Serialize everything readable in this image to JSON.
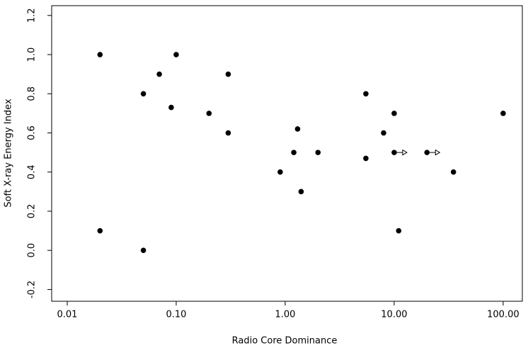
{
  "chart_data": {
    "type": "scatter",
    "x_label": "Radio Core Dominance",
    "y_label": "Soft X-ray Energy Index",
    "x_scale": "log",
    "color": "#000000",
    "x": [
      0.02,
      0.02,
      0.05,
      0.05,
      0.07,
      0.09,
      0.1,
      0.2,
      0.3,
      0.3,
      0.9,
      1.2,
      1.3,
      1.4,
      2.0,
      5.5,
      5.5,
      8,
      10,
      10,
      11,
      20,
      35,
      100
    ],
    "y": [
      1.0,
      0.1,
      0.8,
      0.0,
      0.9,
      0.73,
      1.0,
      0.7,
      0.9,
      0.6,
      0.4,
      0.5,
      0.62,
      0.3,
      0.5,
      0.8,
      0.47,
      0.6,
      0.7,
      0.5,
      0.1,
      0.5,
      0.4,
      0.7
    ],
    "x_lower_limit": [
      false,
      false,
      false,
      false,
      false,
      false,
      false,
      false,
      false,
      false,
      false,
      false,
      false,
      false,
      false,
      false,
      false,
      false,
      false,
      true,
      false,
      true,
      false,
      false
    ],
    "xlim": [
      0.0072,
      150
    ],
    "ylim": [
      -0.26,
      1.25
    ],
    "xticks": [
      {
        "value": 0.01,
        "label": "0.01"
      },
      {
        "value": 0.1,
        "label": "0.10"
      },
      {
        "value": 1,
        "label": "1.00"
      },
      {
        "value": 10,
        "label": "10.00"
      },
      {
        "value": 100,
        "label": "100.00"
      }
    ],
    "yticks": [
      -0.2,
      {
        "value": 0,
        "label": "0.0"
      },
      0.2,
      0.4,
      0.6,
      0.8,
      {
        "value": 1,
        "label": "1.0"
      },
      1.2
    ],
    "grid": false
  }
}
